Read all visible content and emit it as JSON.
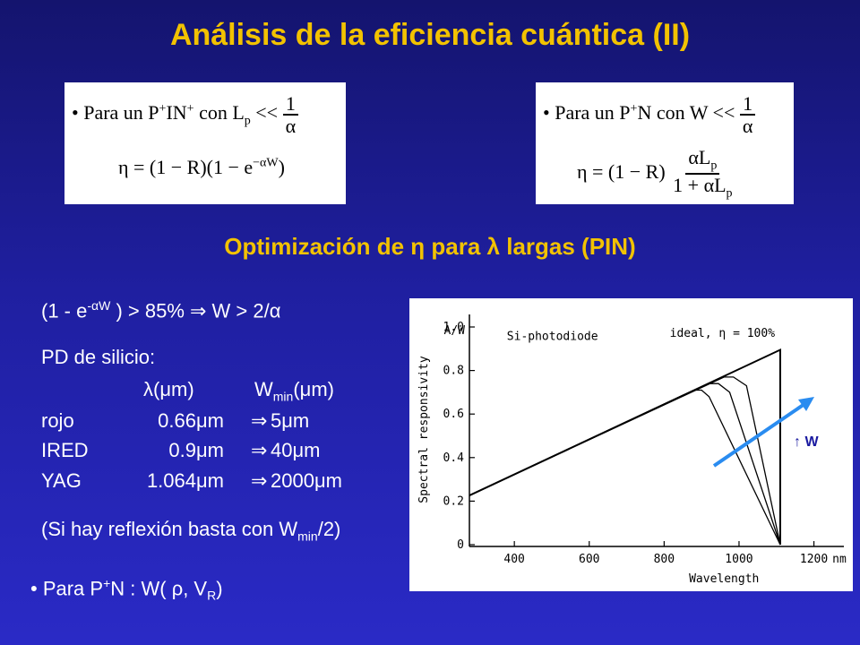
{
  "title": "Análisis de la eficiencia cuántica (II)",
  "formula1": {
    "line1_prefix": "• Para un P",
    "sup1": "+",
    "in": "IN",
    "sup2": "+",
    "con": " con L",
    "sub_p": "p",
    "ll": " << ",
    "num": "1",
    "den": "α",
    "eq": "η = (1 − R)(1 − e",
    "exp": "−αW",
    "close": ")"
  },
  "formula2": {
    "line1_prefix": "• Para un P",
    "sup1": "+",
    "rest": "N con W << ",
    "num": "1",
    "den": "α",
    "eq": "η = (1 − R)",
    "frac_num": "αL",
    "frac_num_sub": "p",
    "frac_den": "1 + αL",
    "frac_den_sub": "p"
  },
  "subtitle": "Optimización de η para λ largas (PIN)",
  "eq_line": {
    "pre": "(1 - e",
    "exp": "-αW",
    "post": " ) > 85%  ⇒  W  >  2/α"
  },
  "pd_label": "PD de silicio:",
  "table_header": {
    "lambda": "λ(μm)",
    "w": "W",
    "w_sub": "min",
    "w_unit": "(μm)"
  },
  "table_rows": [
    {
      "name": "rojo",
      "lambda": "0.66μm",
      "arrow": "⇒",
      "w": "5μm"
    },
    {
      "name": "IRED",
      "lambda": "0.9μm",
      "arrow": "⇒",
      "w": "40μm"
    },
    {
      "name": "YAG",
      "lambda": "1.064μm",
      "arrow": "⇒",
      "w": "2000μm"
    }
  ],
  "reflex_note": {
    "pre": "(Si hay reflexión basta con W",
    "sub": "min",
    "post": "/2)"
  },
  "bullet": {
    "pre": "• Para P",
    "sup": "+",
    "mid": "N :  W( ρ, V",
    "sub": "R",
    "post": ")"
  },
  "colors": {
    "title": "#f2c200",
    "arrow": "#2a8cf0",
    "text": "#ffffff"
  },
  "chart_data": {
    "type": "line",
    "ylabel": "Spectral responsivity",
    "yunit": "A/W",
    "xlabel": "Wavelength",
    "xunit": "nm",
    "x_ticks": [
      "400",
      "600",
      "800",
      "1000",
      "1200"
    ],
    "y_ticks": [
      "0",
      "0.2",
      "0.4",
      "0.6",
      "0.8",
      "1.0"
    ],
    "xlim": [
      280,
      1280
    ],
    "ylim": [
      0,
      1.0
    ],
    "label_device": "Si-photodiode",
    "label_ideal": "ideal, η = 100%",
    "arrow_label": "↑ W",
    "series": [
      {
        "name": "ideal, η = 100%",
        "x": [
          280,
          1110,
          1110
        ],
        "y": [
          0.226,
          0.895,
          0
        ]
      },
      {
        "x": [
          280,
          880,
          900,
          920,
          1110
        ],
        "y": [
          0.226,
          0.71,
          0.71,
          0.68,
          0
        ]
      },
      {
        "x": [
          280,
          920,
          945,
          975,
          1110
        ],
        "y": [
          0.226,
          0.74,
          0.74,
          0.7,
          0
        ]
      },
      {
        "x": [
          280,
          960,
          985,
          1020,
          1110
        ],
        "y": [
          0.226,
          0.77,
          0.77,
          0.73,
          0
        ]
      }
    ]
  }
}
